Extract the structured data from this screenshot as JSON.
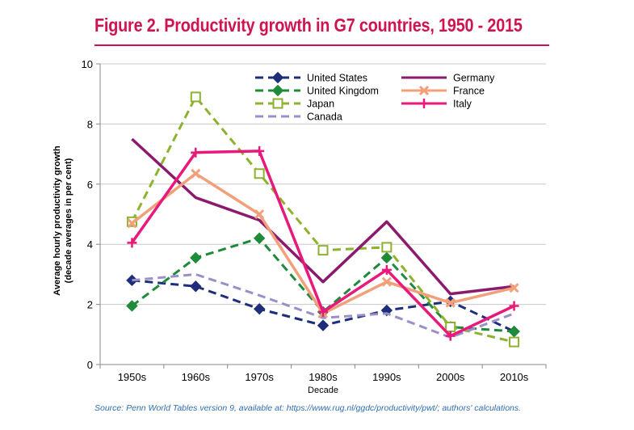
{
  "title": "Figure 2.  Productivity growth in G7 countries, 1950 - 2015",
  "source": "Source: Penn World Tables version 9, available at: https://www.rug.nl/ggdc/productivity/pwt/; authors' calculations.",
  "chart_data": {
    "type": "line",
    "title": "Figure 2.  Productivity growth in G7 countries, 1950 - 2015",
    "xlabel": "Decade",
    "ylabel_line1": "Average hourly productivity growth",
    "ylabel_line2": "(decade averages in per cent)",
    "categories": [
      "1950s",
      "1960s",
      "1970s",
      "1980s",
      "1990s",
      "2000s",
      "2010s"
    ],
    "ylim": [
      0,
      10
    ],
    "yticks": [
      "0",
      "2",
      "4",
      "6",
      "8",
      "10"
    ],
    "grid": true,
    "legend_position": "top-right",
    "series": [
      {
        "name": "United States",
        "color": "#1f2e7a",
        "dash": "dashed",
        "marker": "diamond",
        "values": [
          2.8,
          2.6,
          1.85,
          1.3,
          1.8,
          2.1,
          1.1
        ]
      },
      {
        "name": "United Kingdom",
        "color": "#1e8a3a",
        "dash": "dashed",
        "marker": "diamond",
        "values": [
          1.95,
          3.55,
          4.2,
          1.75,
          3.55,
          1.25,
          1.1
        ]
      },
      {
        "name": "Japan",
        "color": "#8db22f",
        "dash": "dashed",
        "marker": "square-open",
        "values": [
          4.75,
          8.9,
          6.35,
          3.8,
          3.9,
          1.25,
          0.75
        ]
      },
      {
        "name": "Canada",
        "color": "#9b8fc7",
        "dash": "dashed",
        "marker": "none",
        "values": [
          2.8,
          3.0,
          2.3,
          1.55,
          1.7,
          0.9,
          1.7
        ]
      },
      {
        "name": "Germany",
        "color": "#8b1a6f",
        "dash": "solid",
        "marker": "none",
        "values": [
          7.5,
          5.55,
          4.8,
          2.75,
          4.75,
          2.35,
          2.6
        ]
      },
      {
        "name": "France",
        "color": "#f2a07a",
        "dash": "solid",
        "marker": "cross-x",
        "values": [
          4.7,
          6.35,
          5.0,
          1.7,
          2.75,
          2.05,
          2.55
        ]
      },
      {
        "name": "Italy",
        "color": "#e8197a",
        "dash": "solid",
        "marker": "plus",
        "values": [
          4.05,
          7.05,
          7.1,
          1.75,
          3.15,
          0.95,
          1.95
        ]
      }
    ]
  }
}
